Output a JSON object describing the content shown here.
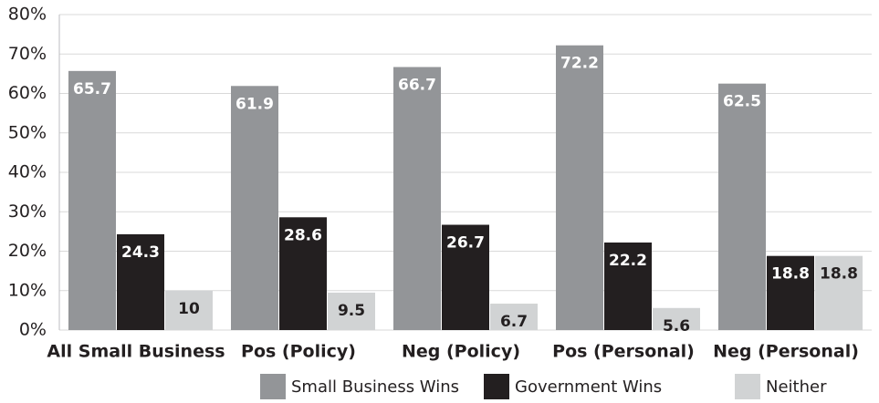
{
  "chart_data": {
    "type": "bar",
    "categories": [
      "All Small Business",
      "Pos (Policy)",
      "Neg (Policy)",
      "Pos (Personal)",
      "Neg (Personal)"
    ],
    "series": [
      {
        "name": "Small Business Wins",
        "color": "#939598",
        "values": [
          65.7,
          61.9,
          66.7,
          72.2,
          62.5
        ]
      },
      {
        "name": "Government Wins",
        "color": "#231f20",
        "values": [
          24.3,
          28.6,
          26.7,
          22.2,
          18.8
        ]
      },
      {
        "name": "Neither",
        "color": "#d1d3d4",
        "values": [
          10,
          9.5,
          6.7,
          5.6,
          18.8
        ]
      }
    ],
    "ylim": [
      0,
      80
    ],
    "yticks": [
      {
        "value": 0,
        "label": "0%"
      },
      {
        "value": 10,
        "label": "10%"
      },
      {
        "value": 20,
        "label": "20%"
      },
      {
        "value": 30,
        "label": "30%"
      },
      {
        "value": 40,
        "label": "40%"
      },
      {
        "value": 50,
        "label": "50%"
      },
      {
        "value": 60,
        "label": "60%"
      },
      {
        "value": 70,
        "label": "70%"
      },
      {
        "value": 80,
        "label": "80%"
      }
    ],
    "grid": true,
    "legend": "bottom-right"
  }
}
